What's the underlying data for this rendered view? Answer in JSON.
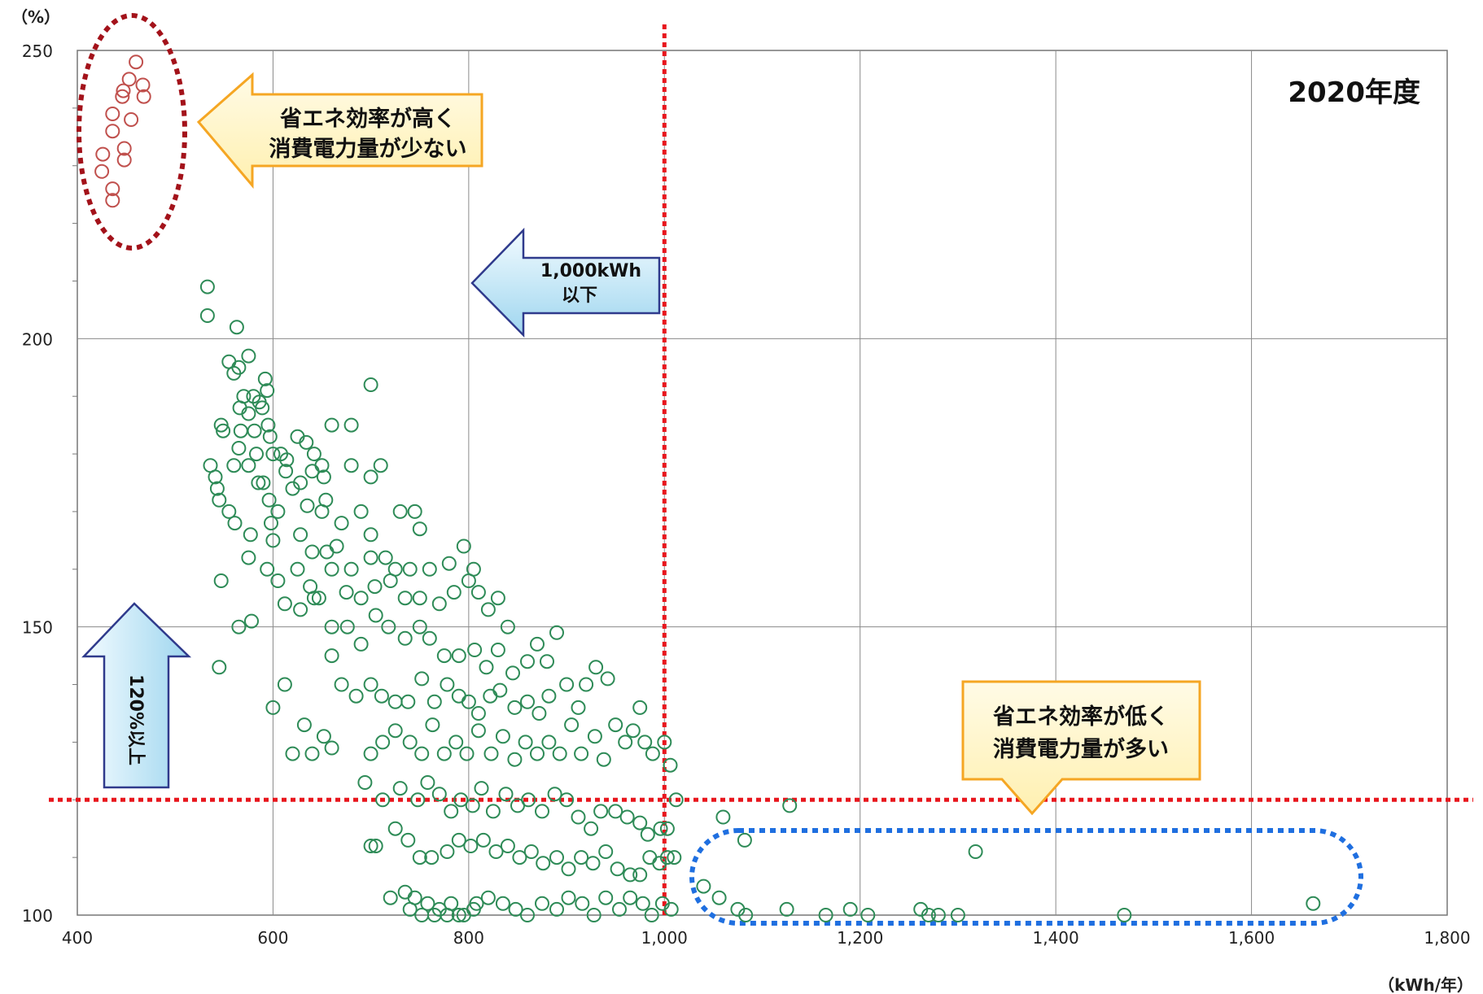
{
  "chart_data": {
    "type": "scatter",
    "title": "2020年度",
    "y_unit": "（%）",
    "x_unit": "（kWh/年）",
    "xlim": [
      400,
      1800
    ],
    "ylim": [
      100,
      250
    ],
    "x_ticks": [
      "400",
      "600",
      "800",
      "1,000",
      "1,200",
      "1,400",
      "1,600",
      "1,800"
    ],
    "x_tick_values": [
      400,
      600,
      800,
      1000,
      1200,
      1400,
      1600,
      1800
    ],
    "y_ticks": [
      "100",
      "150",
      "200",
      "250"
    ],
    "y_tick_values": [
      100,
      150,
      200,
      250
    ],
    "grid": true,
    "threshold_x": 1000,
    "threshold_y": 120,
    "annotations": {
      "high_efficiency": [
        "省エネ効率が高く",
        "消費電力量が少ない"
      ],
      "low_efficiency": [
        "省エネ効率が低く",
        "消費電力量が多い"
      ],
      "kwh_arrow": [
        "1,000kWh",
        "以下"
      ],
      "pct_arrow": "120%以上"
    },
    "series": [
      {
        "color": "#c0504d",
        "points": [
          [
            460,
            248
          ],
          [
            453,
            245
          ],
          [
            467,
            244
          ],
          [
            447,
            243
          ],
          [
            468,
            242
          ],
          [
            446,
            242
          ],
          [
            436,
            239
          ],
          [
            455,
            238
          ],
          [
            436,
            236
          ],
          [
            448,
            233
          ],
          [
            426,
            232
          ],
          [
            448,
            231
          ],
          [
            425,
            229
          ],
          [
            436,
            226
          ],
          [
            436,
            224
          ]
        ]
      },
      {
        "color": "#2e8b57",
        "points": [
          [
            533,
            209
          ],
          [
            533,
            204
          ],
          [
            563,
            202
          ],
          [
            575,
            197
          ],
          [
            565,
            195
          ],
          [
            555,
            196
          ],
          [
            560,
            194
          ],
          [
            592,
            193
          ],
          [
            594,
            191
          ],
          [
            589,
            188
          ],
          [
            570,
            190
          ],
          [
            580,
            190
          ],
          [
            575,
            187
          ],
          [
            566,
            188
          ],
          [
            586,
            189
          ],
          [
            700,
            192
          ],
          [
            567,
            184
          ],
          [
            581,
            184
          ],
          [
            595,
            185
          ],
          [
            597,
            183
          ],
          [
            608,
            180
          ],
          [
            614,
            179
          ],
          [
            625,
            183
          ],
          [
            634,
            182
          ],
          [
            642,
            180
          ],
          [
            650,
            178
          ],
          [
            660,
            185
          ],
          [
            680,
            185
          ],
          [
            547,
            185
          ],
          [
            549,
            184
          ],
          [
            565,
            181
          ],
          [
            583,
            180
          ],
          [
            585,
            175
          ],
          [
            600,
            180
          ],
          [
            613,
            177
          ],
          [
            628,
            175
          ],
          [
            640,
            177
          ],
          [
            652,
            176
          ],
          [
            654,
            172
          ],
          [
            680,
            178
          ],
          [
            710,
            178
          ],
          [
            700,
            176
          ],
          [
            536,
            178
          ],
          [
            541,
            176
          ],
          [
            543,
            174
          ],
          [
            560,
            178
          ],
          [
            575,
            178
          ],
          [
            590,
            175
          ],
          [
            596,
            172
          ],
          [
            605,
            170
          ],
          [
            620,
            174
          ],
          [
            635,
            171
          ],
          [
            650,
            170
          ],
          [
            670,
            168
          ],
          [
            690,
            170
          ],
          [
            700,
            166
          ],
          [
            730,
            170
          ],
          [
            745,
            170
          ],
          [
            750,
            167
          ],
          [
            545,
            172
          ],
          [
            555,
            170
          ],
          [
            561,
            168
          ],
          [
            577,
            166
          ],
          [
            598,
            168
          ],
          [
            600,
            165
          ],
          [
            628,
            166
          ],
          [
            640,
            163
          ],
          [
            655,
            163
          ],
          [
            665,
            164
          ],
          [
            680,
            160
          ],
          [
            700,
            162
          ],
          [
            715,
            162
          ],
          [
            725,
            160
          ],
          [
            740,
            160
          ],
          [
            760,
            160
          ],
          [
            780,
            161
          ],
          [
            795,
            164
          ],
          [
            805,
            160
          ],
          [
            575,
            162
          ],
          [
            594,
            160
          ],
          [
            605,
            158
          ],
          [
            625,
            160
          ],
          [
            638,
            157
          ],
          [
            647,
            155
          ],
          [
            660,
            160
          ],
          [
            675,
            156
          ],
          [
            690,
            155
          ],
          [
            704,
            157
          ],
          [
            720,
            158
          ],
          [
            735,
            155
          ],
          [
            750,
            155
          ],
          [
            770,
            154
          ],
          [
            785,
            156
          ],
          [
            800,
            158
          ],
          [
            810,
            156
          ],
          [
            820,
            153
          ],
          [
            830,
            155
          ],
          [
            840,
            150
          ],
          [
            547,
            158
          ],
          [
            565,
            150
          ],
          [
            578,
            151
          ],
          [
            612,
            154
          ],
          [
            628,
            153
          ],
          [
            642,
            155
          ],
          [
            660,
            150
          ],
          [
            676,
            150
          ],
          [
            690,
            147
          ],
          [
            705,
            152
          ],
          [
            718,
            150
          ],
          [
            735,
            148
          ],
          [
            750,
            150
          ],
          [
            760,
            148
          ],
          [
            775,
            145
          ],
          [
            790,
            145
          ],
          [
            806,
            146
          ],
          [
            818,
            143
          ],
          [
            830,
            146
          ],
          [
            845,
            142
          ],
          [
            860,
            144
          ],
          [
            870,
            147
          ],
          [
            880,
            144
          ],
          [
            890,
            149
          ],
          [
            545,
            143
          ],
          [
            600,
            136
          ],
          [
            612,
            140
          ],
          [
            632,
            133
          ],
          [
            652,
            131
          ],
          [
            660,
            145
          ],
          [
            670,
            140
          ],
          [
            685,
            138
          ],
          [
            700,
            140
          ],
          [
            711,
            138
          ],
          [
            725,
            137
          ],
          [
            738,
            137
          ],
          [
            752,
            141
          ],
          [
            765,
            137
          ],
          [
            778,
            140
          ],
          [
            790,
            138
          ],
          [
            800,
            137
          ],
          [
            810,
            135
          ],
          [
            822,
            138
          ],
          [
            832,
            139
          ],
          [
            847,
            136
          ],
          [
            860,
            137
          ],
          [
            872,
            135
          ],
          [
            882,
            138
          ],
          [
            900,
            140
          ],
          [
            912,
            136
          ],
          [
            920,
            140
          ],
          [
            930,
            143
          ],
          [
            942,
            141
          ],
          [
            700,
            128
          ],
          [
            712,
            130
          ],
          [
            725,
            132
          ],
          [
            740,
            130
          ],
          [
            752,
            128
          ],
          [
            763,
            133
          ],
          [
            775,
            128
          ],
          [
            787,
            130
          ],
          [
            798,
            128
          ],
          [
            810,
            132
          ],
          [
            823,
            128
          ],
          [
            835,
            131
          ],
          [
            847,
            127
          ],
          [
            858,
            130
          ],
          [
            870,
            128
          ],
          [
            882,
            130
          ],
          [
            893,
            128
          ],
          [
            905,
            133
          ],
          [
            915,
            128
          ],
          [
            929,
            131
          ],
          [
            938,
            127
          ],
          [
            950,
            133
          ],
          [
            960,
            130
          ],
          [
            968,
            132
          ],
          [
            975,
            136
          ],
          [
            980,
            130
          ],
          [
            988,
            128
          ],
          [
            1000,
            130
          ],
          [
            1006,
            126
          ],
          [
            620,
            128
          ],
          [
            640,
            128
          ],
          [
            660,
            129
          ],
          [
            694,
            123
          ],
          [
            700,
            112
          ],
          [
            705,
            112
          ],
          [
            712,
            120
          ],
          [
            730,
            122
          ],
          [
            748,
            120
          ],
          [
            758,
            123
          ],
          [
            770,
            121
          ],
          [
            782,
            118
          ],
          [
            792,
            120
          ],
          [
            804,
            119
          ],
          [
            813,
            122
          ],
          [
            825,
            118
          ],
          [
            838,
            121
          ],
          [
            850,
            119
          ],
          [
            861,
            120
          ],
          [
            875,
            118
          ],
          [
            888,
            121
          ],
          [
            900,
            120
          ],
          [
            912,
            117
          ],
          [
            925,
            115
          ],
          [
            935,
            118
          ],
          [
            950,
            118
          ],
          [
            962,
            117
          ],
          [
            975,
            116
          ],
          [
            983,
            114
          ],
          [
            996,
            115
          ],
          [
            1003,
            115
          ],
          [
            1012,
            120
          ],
          [
            1060,
            117
          ],
          [
            1128,
            119
          ],
          [
            725,
            115
          ],
          [
            738,
            113
          ],
          [
            750,
            110
          ],
          [
            762,
            110
          ],
          [
            778,
            111
          ],
          [
            790,
            113
          ],
          [
            802,
            112
          ],
          [
            815,
            113
          ],
          [
            828,
            111
          ],
          [
            840,
            112
          ],
          [
            852,
            110
          ],
          [
            864,
            111
          ],
          [
            876,
            109
          ],
          [
            890,
            110
          ],
          [
            902,
            108
          ],
          [
            915,
            110
          ],
          [
            927,
            109
          ],
          [
            940,
            111
          ],
          [
            952,
            108
          ],
          [
            965,
            107
          ],
          [
            975,
            107
          ],
          [
            985,
            110
          ],
          [
            995,
            109
          ],
          [
            1003,
            110
          ],
          [
            1010,
            110
          ],
          [
            1082,
            113
          ],
          [
            1318,
            111
          ],
          [
            720,
            103
          ],
          [
            735,
            104
          ],
          [
            745,
            103
          ],
          [
            758,
            102
          ],
          [
            770,
            101
          ],
          [
            782,
            102
          ],
          [
            795,
            100
          ],
          [
            808,
            102
          ],
          [
            820,
            103
          ],
          [
            835,
            102
          ],
          [
            848,
            101
          ],
          [
            860,
            100
          ],
          [
            875,
            102
          ],
          [
            890,
            101
          ],
          [
            902,
            103
          ],
          [
            916,
            102
          ],
          [
            928,
            100
          ],
          [
            940,
            103
          ],
          [
            954,
            101
          ],
          [
            965,
            103
          ],
          [
            978,
            102
          ],
          [
            987,
            100
          ],
          [
            998,
            102
          ],
          [
            1007,
            101
          ],
          [
            1040,
            105
          ],
          [
            1056,
            103
          ],
          [
            1075,
            101
          ],
          [
            1083,
            100
          ],
          [
            1125,
            101
          ],
          [
            1165,
            100
          ],
          [
            1190,
            101
          ],
          [
            1208,
            100
          ],
          [
            1262,
            101
          ],
          [
            1270,
            100
          ],
          [
            1280,
            100
          ],
          [
            1300,
            100
          ],
          [
            1470,
            100
          ],
          [
            1663,
            102
          ],
          [
            740,
            101
          ],
          [
            752,
            100
          ],
          [
            765,
            100
          ],
          [
            778,
            100
          ],
          [
            790,
            100
          ],
          [
            805,
            101
          ]
        ]
      }
    ]
  }
}
